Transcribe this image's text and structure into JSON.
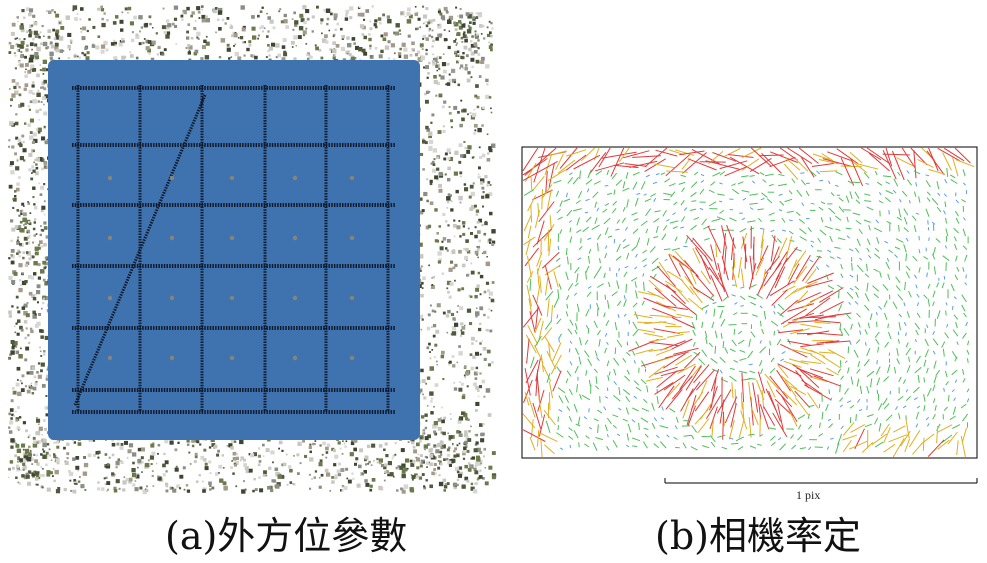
{
  "figure": {
    "panel_a": {
      "caption": "(a)外方位參數",
      "colors": {
        "ground_plane": "#3f73b0",
        "track": "#111a2a",
        "point_cloud": [
          "#6b7a4a",
          "#8a8f86",
          "#c9c7c0",
          "#4e5a3a",
          "#a39a8a",
          "#d8d6d2",
          "#3c4632"
        ]
      }
    },
    "panel_b": {
      "caption": "(b)相機率定",
      "scale_label": "1 pix",
      "colors": {
        "frame": "#000000",
        "vector_small": "#4fbf5a",
        "vector_medium": "#e0b020",
        "vector_large": "#e03a3a",
        "vector_faint": "#5aa0e0"
      }
    }
  }
}
